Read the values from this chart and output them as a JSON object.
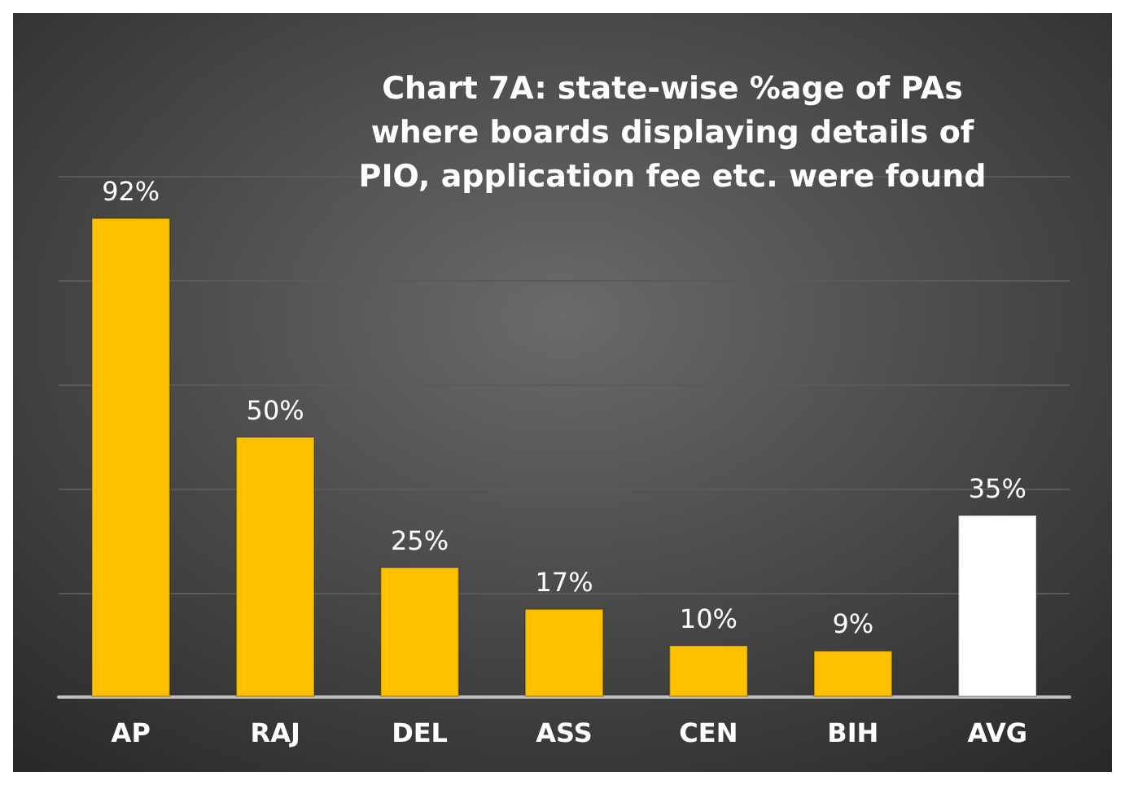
{
  "chart_data": {
    "type": "bar",
    "title": "Chart 7A: state-wise %age of PAs\nwhere boards displaying details of\nPIO, application fee etc. were found",
    "categories": [
      "AP",
      "RAJ",
      "DEL",
      "ASS",
      "CEN",
      "BIH",
      "AVG"
    ],
    "values": [
      92,
      50,
      25,
      17,
      10,
      9,
      35
    ],
    "colors": [
      "#ffc000",
      "#ffc000",
      "#ffc000",
      "#ffc000",
      "#ffc000",
      "#ffc000",
      "#ffffff"
    ],
    "value_labels": [
      "92%",
      "50%",
      "25%",
      "17%",
      "10%",
      "9%",
      "35%"
    ],
    "ylim": [
      0,
      100
    ],
    "yticks": [
      {
        "value": 0,
        "label": null
      },
      {
        "value": 20,
        "label": null
      },
      {
        "value": 40,
        "label": null
      },
      {
        "value": 60,
        "label": null
      },
      {
        "value": 80,
        "label": null
      },
      {
        "value": 100,
        "label": null
      }
    ],
    "grid": "y",
    "tick_labels": "x"
  }
}
